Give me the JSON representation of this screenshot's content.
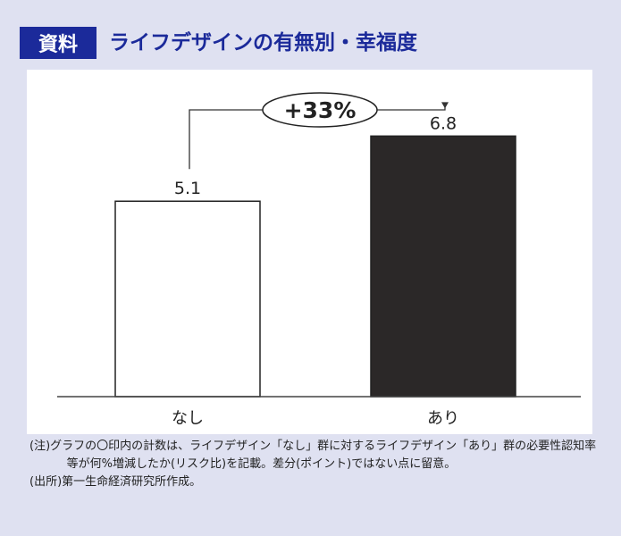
{
  "header": {
    "badge": "資料",
    "title": "ライフデザインの有無別・幸福度"
  },
  "chart_data": {
    "type": "bar",
    "categories": [
      "なし",
      "あり"
    ],
    "values": [
      5.1,
      6.8
    ],
    "value_labels": [
      "5.1",
      "6.8"
    ],
    "bar_colors": [
      "#ffffff",
      "#2b2828"
    ],
    "annotation": "+33%",
    "title": "",
    "xlabel": "",
    "ylabel": "",
    "ylim": [
      0,
      7.6
    ],
    "grid": false,
    "legend": "none"
  },
  "notes": {
    "note1": "(注)グラフの〇印内の計数は、ライフデザイン「なし」群に対するライフデザイン「あり」群の必要性認知率等が何%増減したか(リスク比)を記載。差分(ポイント)ではない点に留意。",
    "source": "(出所)第一生命経済研究所作成。"
  }
}
